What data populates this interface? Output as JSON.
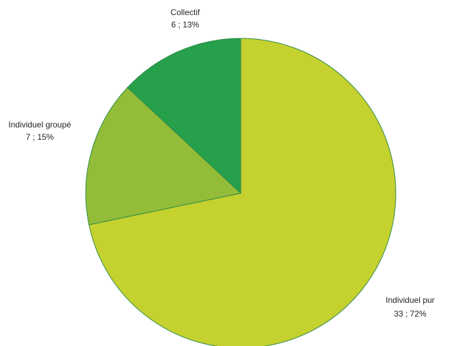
{
  "chart_data": {
    "type": "pie",
    "categories": [
      "Individuel pur",
      "Individuel groupé",
      "Collectif"
    ],
    "values": [
      33,
      7,
      6
    ],
    "percent": [
      72,
      15,
      13
    ],
    "colors": [
      "#c5d12e",
      "#93bd38",
      "#26a04a"
    ],
    "labels": [
      {
        "name": "Individuel pur",
        "value": "33 ; 72%"
      },
      {
        "name": "Individuel groupé",
        "value": "7 ; 15%"
      },
      {
        "name": "Collectif",
        "value": "6 ; 13%"
      }
    ],
    "start_angle": "12 o'clock",
    "direction": "clockwise"
  }
}
